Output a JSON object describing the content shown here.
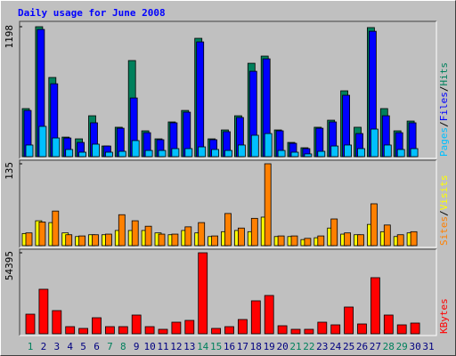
{
  "chart_data": [
    {
      "type": "bar",
      "title": "Daily usage for June 2008",
      "ylim": [
        0,
        1198
      ],
      "yticks": [
        1198
      ],
      "legend_separator": "/",
      "series": [
        {
          "name": "Pages",
          "color": "#00c0ff",
          "values": [
            107,
            279,
            172,
            66,
            41,
            115,
            41,
            49,
            148,
            57,
            57,
            74,
            74,
            90,
            66,
            57,
            107,
            197,
            213,
            57,
            41,
            25,
            49,
            98,
            107,
            74,
            254,
            107,
            66,
            74,
            null
          ]
        },
        {
          "name": "Files",
          "color": "#0000ff",
          "values": [
            426,
            1173,
            672,
            172,
            131,
            312,
            98,
            262,
            541,
            221,
            156,
            312,
            410,
            1058,
            156,
            230,
            361,
            787,
            902,
            238,
            123,
            74,
            262,
            320,
            566,
            213,
            1156,
            377,
            221,
            312,
            null
          ]
        },
        {
          "name": "Hits",
          "color": "#00805c",
          "values": [
            443,
            1198,
            730,
            180,
            164,
            377,
            98,
            271,
            886,
            238,
            164,
            320,
            426,
            1091,
            164,
            246,
            377,
            861,
            927,
            246,
            131,
            82,
            271,
            336,
            607,
            271,
            1190,
            443,
            238,
            328,
            null
          ]
        }
      ]
    },
    {
      "type": "bar",
      "ylim": [
        0,
        135
      ],
      "yticks": [
        135
      ],
      "legend_separator": "/",
      "series": [
        {
          "name": "Sites",
          "color": "#ff8000",
          "values": [
            21,
            39,
            57,
            18,
            16,
            18,
            19,
            51,
            41,
            32,
            19,
            19,
            31,
            38,
            16,
            53,
            29,
            45,
            135,
            16,
            16,
            12,
            16,
            44,
            21,
            18,
            69,
            34,
            18,
            23,
            null
          ]
        },
        {
          "name": "Visits",
          "color": "#ffff00",
          "values": [
            20,
            41,
            38,
            21,
            15,
            18,
            18,
            25,
            25,
            25,
            21,
            18,
            25,
            21,
            15,
            23,
            25,
            23,
            47,
            15,
            15,
            10,
            13,
            29,
            19,
            18,
            35,
            23,
            15,
            21,
            null
          ]
        }
      ]
    },
    {
      "type": "bar",
      "ylim": [
        0,
        54395
      ],
      "yticks": [
        54395
      ],
      "series": [
        {
          "name": "KBytes",
          "color": "#ff0000",
          "values": [
            13150,
            29900,
            15550,
            4780,
            3590,
            10760,
            4780,
            4780,
            12560,
            4780,
            2990,
            7770,
            8970,
            54395,
            3590,
            4780,
            9570,
            22130,
            25710,
            5380,
            2990,
            2990,
            7770,
            5980,
            17940,
            6580,
            37670,
            12560,
            5980,
            7180,
            null
          ]
        }
      ],
      "categories": [
        "1",
        "2",
        "3",
        "4",
        "5",
        "6",
        "7",
        "8",
        "9",
        "10",
        "11",
        "12",
        "13",
        "14",
        "15",
        "16",
        "17",
        "18",
        "19",
        "20",
        "21",
        "22",
        "23",
        "24",
        "25",
        "26",
        "27",
        "28",
        "29",
        "30",
        "31"
      ],
      "category_colors": [
        "#00805c",
        "#000080",
        "#000080",
        "#000080",
        "#000080",
        "#000080",
        "#00805c",
        "#00805c",
        "#000080",
        "#000080",
        "#000080",
        "#000080",
        "#000080",
        "#00805c",
        "#00805c",
        "#000080",
        "#000080",
        "#000080",
        "#000080",
        "#000080",
        "#00805c",
        "#00805c",
        "#000080",
        "#000080",
        "#000080",
        "#000080",
        "#000080",
        "#00805c",
        "#00805c",
        "#000080",
        "#000080"
      ]
    }
  ]
}
